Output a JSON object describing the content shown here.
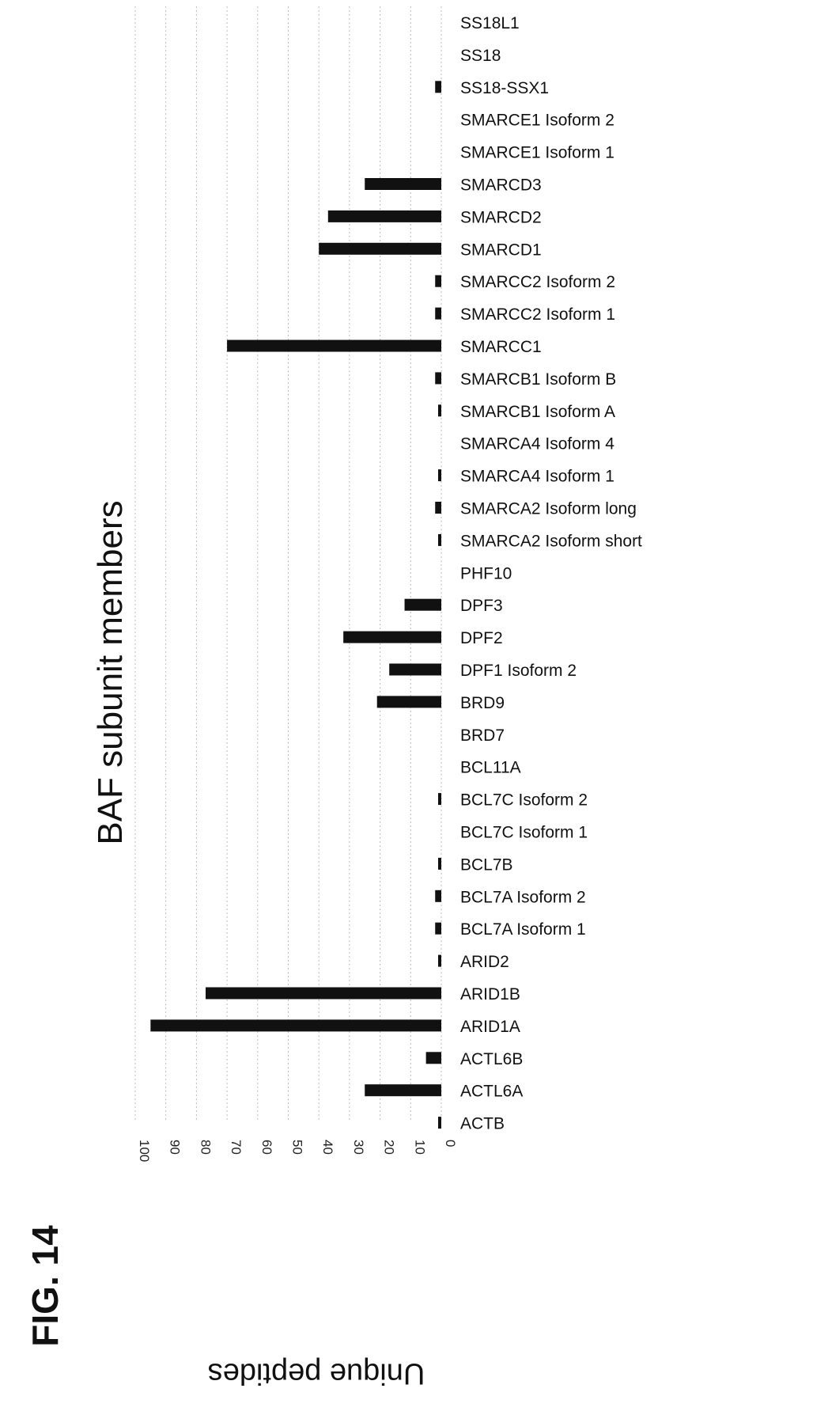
{
  "figure_label": "FIG. 14",
  "chart_data": {
    "type": "bar",
    "orientation": "horizontal",
    "title": "BAF subunit members",
    "ylabel": "Unique peptides",
    "xlim": [
      0,
      100
    ],
    "ticks": [
      "0",
      "10",
      "20",
      "30",
      "40",
      "50",
      "60",
      "70",
      "80",
      "90",
      "100"
    ],
    "grid": true,
    "categories": [
      "SS18L1",
      "SS18",
      "SS18-SSX1",
      "SMARCE1 Isoform 2",
      "SMARCE1 Isoform 1",
      "SMARCD3",
      "SMARCD2",
      "SMARCD1",
      "SMARCC2 Isoform 2",
      "SMARCC2 Isoform 1",
      "SMARCC1",
      "SMARCB1 Isoform B",
      "SMARCB1 Isoform A",
      "SMARCA4 Isoform 4",
      "SMARCA4 Isoform 1",
      "SMARCA2 Isoform long",
      "SMARCA2 Isoform short",
      "PHF10",
      "DPF3",
      "DPF2",
      "DPF1 Isoform 2",
      "BRD9",
      "BRD7",
      "BCL11A",
      "BCL7C Isoform 2",
      "BCL7C Isoform 1",
      "BCL7B",
      "BCL7A Isoform 2",
      "BCL7A Isoform 1",
      "ARID2",
      "ARID1B",
      "ARID1A",
      "ACTL6B",
      "ACTL6A",
      "ACTB"
    ],
    "values": [
      0,
      0,
      2,
      0,
      0,
      25,
      37,
      40,
      2,
      2,
      70,
      2,
      1,
      0,
      1,
      2,
      1,
      0,
      12,
      32,
      17,
      21,
      0,
      0,
      1,
      0,
      1,
      2,
      2,
      1,
      77,
      95,
      5,
      25,
      1
    ],
    "bar_color": "#111111",
    "grid_color": "#bbbbbb"
  }
}
